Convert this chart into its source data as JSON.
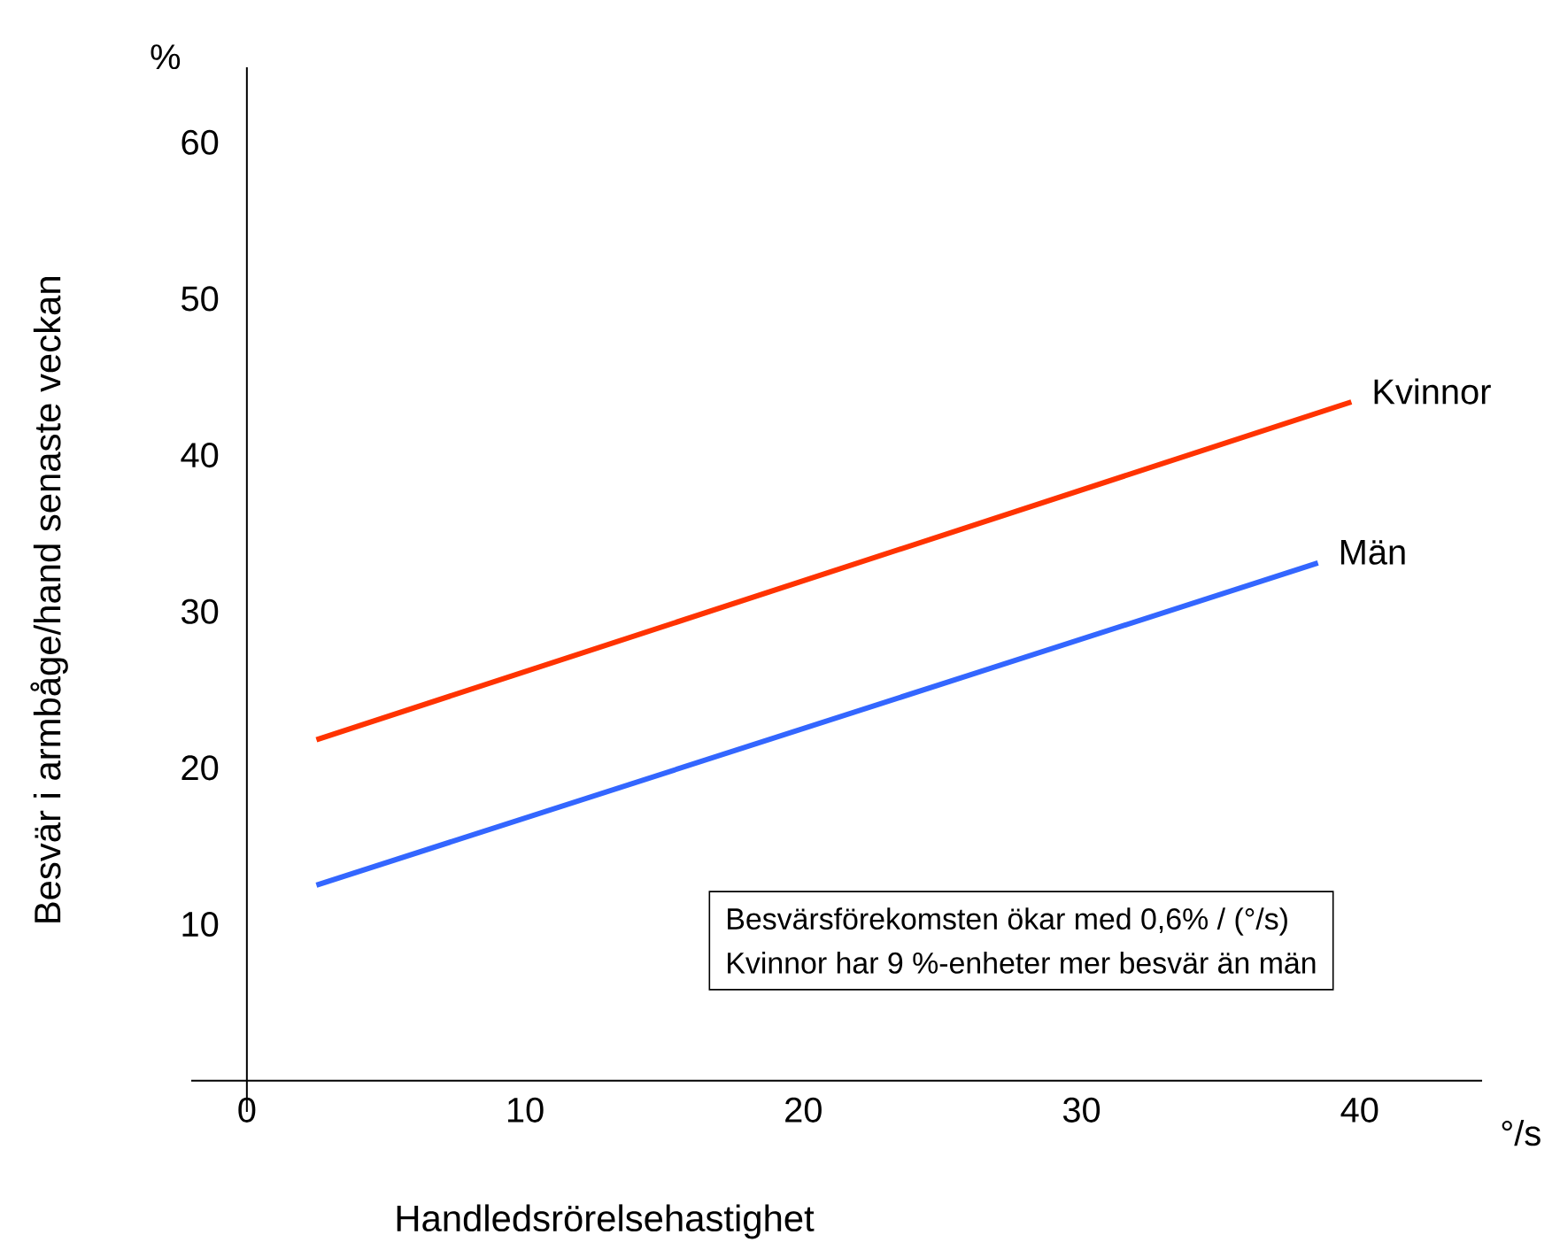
{
  "chart_data": {
    "type": "line",
    "xlabel": "Handledsrörelsehastighet",
    "ylabel": "Besvär i armbåge/hand senaste veckan",
    "xlim": [
      -2,
      44.4
    ],
    "ylim": [
      -2,
      64.8
    ],
    "xticks": [
      0,
      10,
      20,
      30,
      40
    ],
    "yticks": [
      10,
      20,
      30,
      40,
      50,
      60
    ],
    "grid": false,
    "legend": false,
    "annotations": [
      "%",
      "°/s",
      "Besvärsförekomsten ökar med 0,6% / (°/s)",
      "Kvinnor har 9 %-enheter mer besvär än män"
    ],
    "series": [
      {
        "name": "Kvinnor",
        "color": "#ff3300",
        "x": [
          2.5,
          39.7
        ],
        "values": [
          21.8,
          43.4
        ]
      },
      {
        "name": "Män",
        "color": "#3366ff",
        "x": [
          2.5,
          38.5
        ],
        "values": [
          12.5,
          33.1
        ]
      }
    ]
  }
}
